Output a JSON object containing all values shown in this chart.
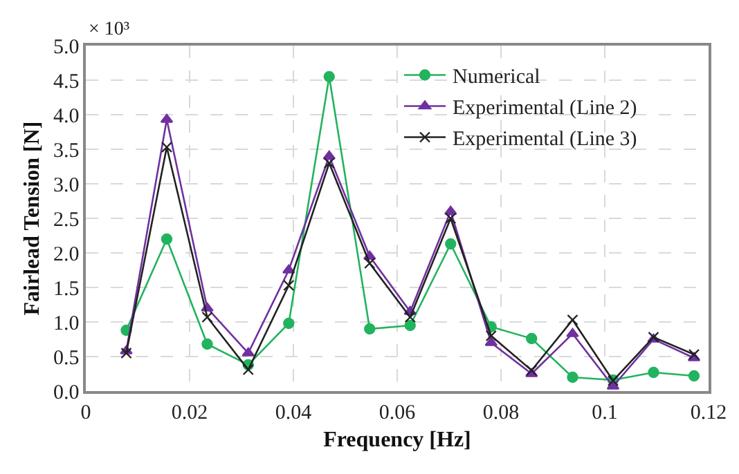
{
  "chart_data": {
    "type": "line",
    "xlabel": "Frequency [Hz]",
    "ylabel": "Fairlead Tension [N]",
    "annotations": [
      "× 10³"
    ],
    "x": [
      0.0078,
      0.0156,
      0.0234,
      0.0313,
      0.0391,
      0.0469,
      0.0547,
      0.0625,
      0.0703,
      0.0781,
      0.0859,
      0.0938,
      0.1016,
      0.1094,
      0.1172
    ],
    "series": [
      {
        "name": "Numerical",
        "color": "#22b35e",
        "marker": "circle",
        "values": [
          0.88,
          2.2,
          0.68,
          0.38,
          0.98,
          4.55,
          0.9,
          0.95,
          2.13,
          0.93,
          0.76,
          0.2,
          0.16,
          0.27,
          0.22
        ]
      },
      {
        "name": "Experimental (Line 2)",
        "color": "#7030a0",
        "marker": "triangle",
        "values": [
          0.58,
          3.93,
          1.2,
          0.55,
          1.75,
          3.4,
          1.95,
          1.15,
          2.6,
          0.7,
          0.25,
          0.83,
          0.07,
          0.75,
          0.48
        ]
      },
      {
        "name": "Experimental (Line 3)",
        "color": "#222222",
        "marker": "cross",
        "values": [
          0.55,
          3.53,
          1.07,
          0.31,
          1.53,
          3.3,
          1.85,
          1.07,
          2.5,
          0.8,
          0.3,
          1.03,
          0.15,
          0.78,
          0.53
        ]
      }
    ],
    "xlim": [
      0,
      0.12
    ],
    "xticks": [
      0,
      0.02,
      0.04,
      0.06,
      0.08,
      0.1,
      0.12
    ],
    "ylim": [
      0,
      5
    ],
    "yticks": [
      {
        "value": 0,
        "label": "0.0"
      },
      {
        "value": 0.5,
        "label": "0.5"
      },
      {
        "value": 1,
        "label": "1.0"
      },
      {
        "value": 1.5,
        "label": "1.5"
      },
      {
        "value": 2,
        "label": "2.0"
      },
      {
        "value": 2.5,
        "label": "2.5"
      },
      {
        "value": 3,
        "label": "3.0"
      },
      {
        "value": 3.5,
        "label": "3.5"
      },
      {
        "value": 4,
        "label": "4.0"
      },
      {
        "value": 4.5,
        "label": "4.5"
      },
      {
        "value": 5,
        "label": "5.0"
      }
    ],
    "grid": true,
    "legend": "top right",
    "line_style": "solid"
  }
}
